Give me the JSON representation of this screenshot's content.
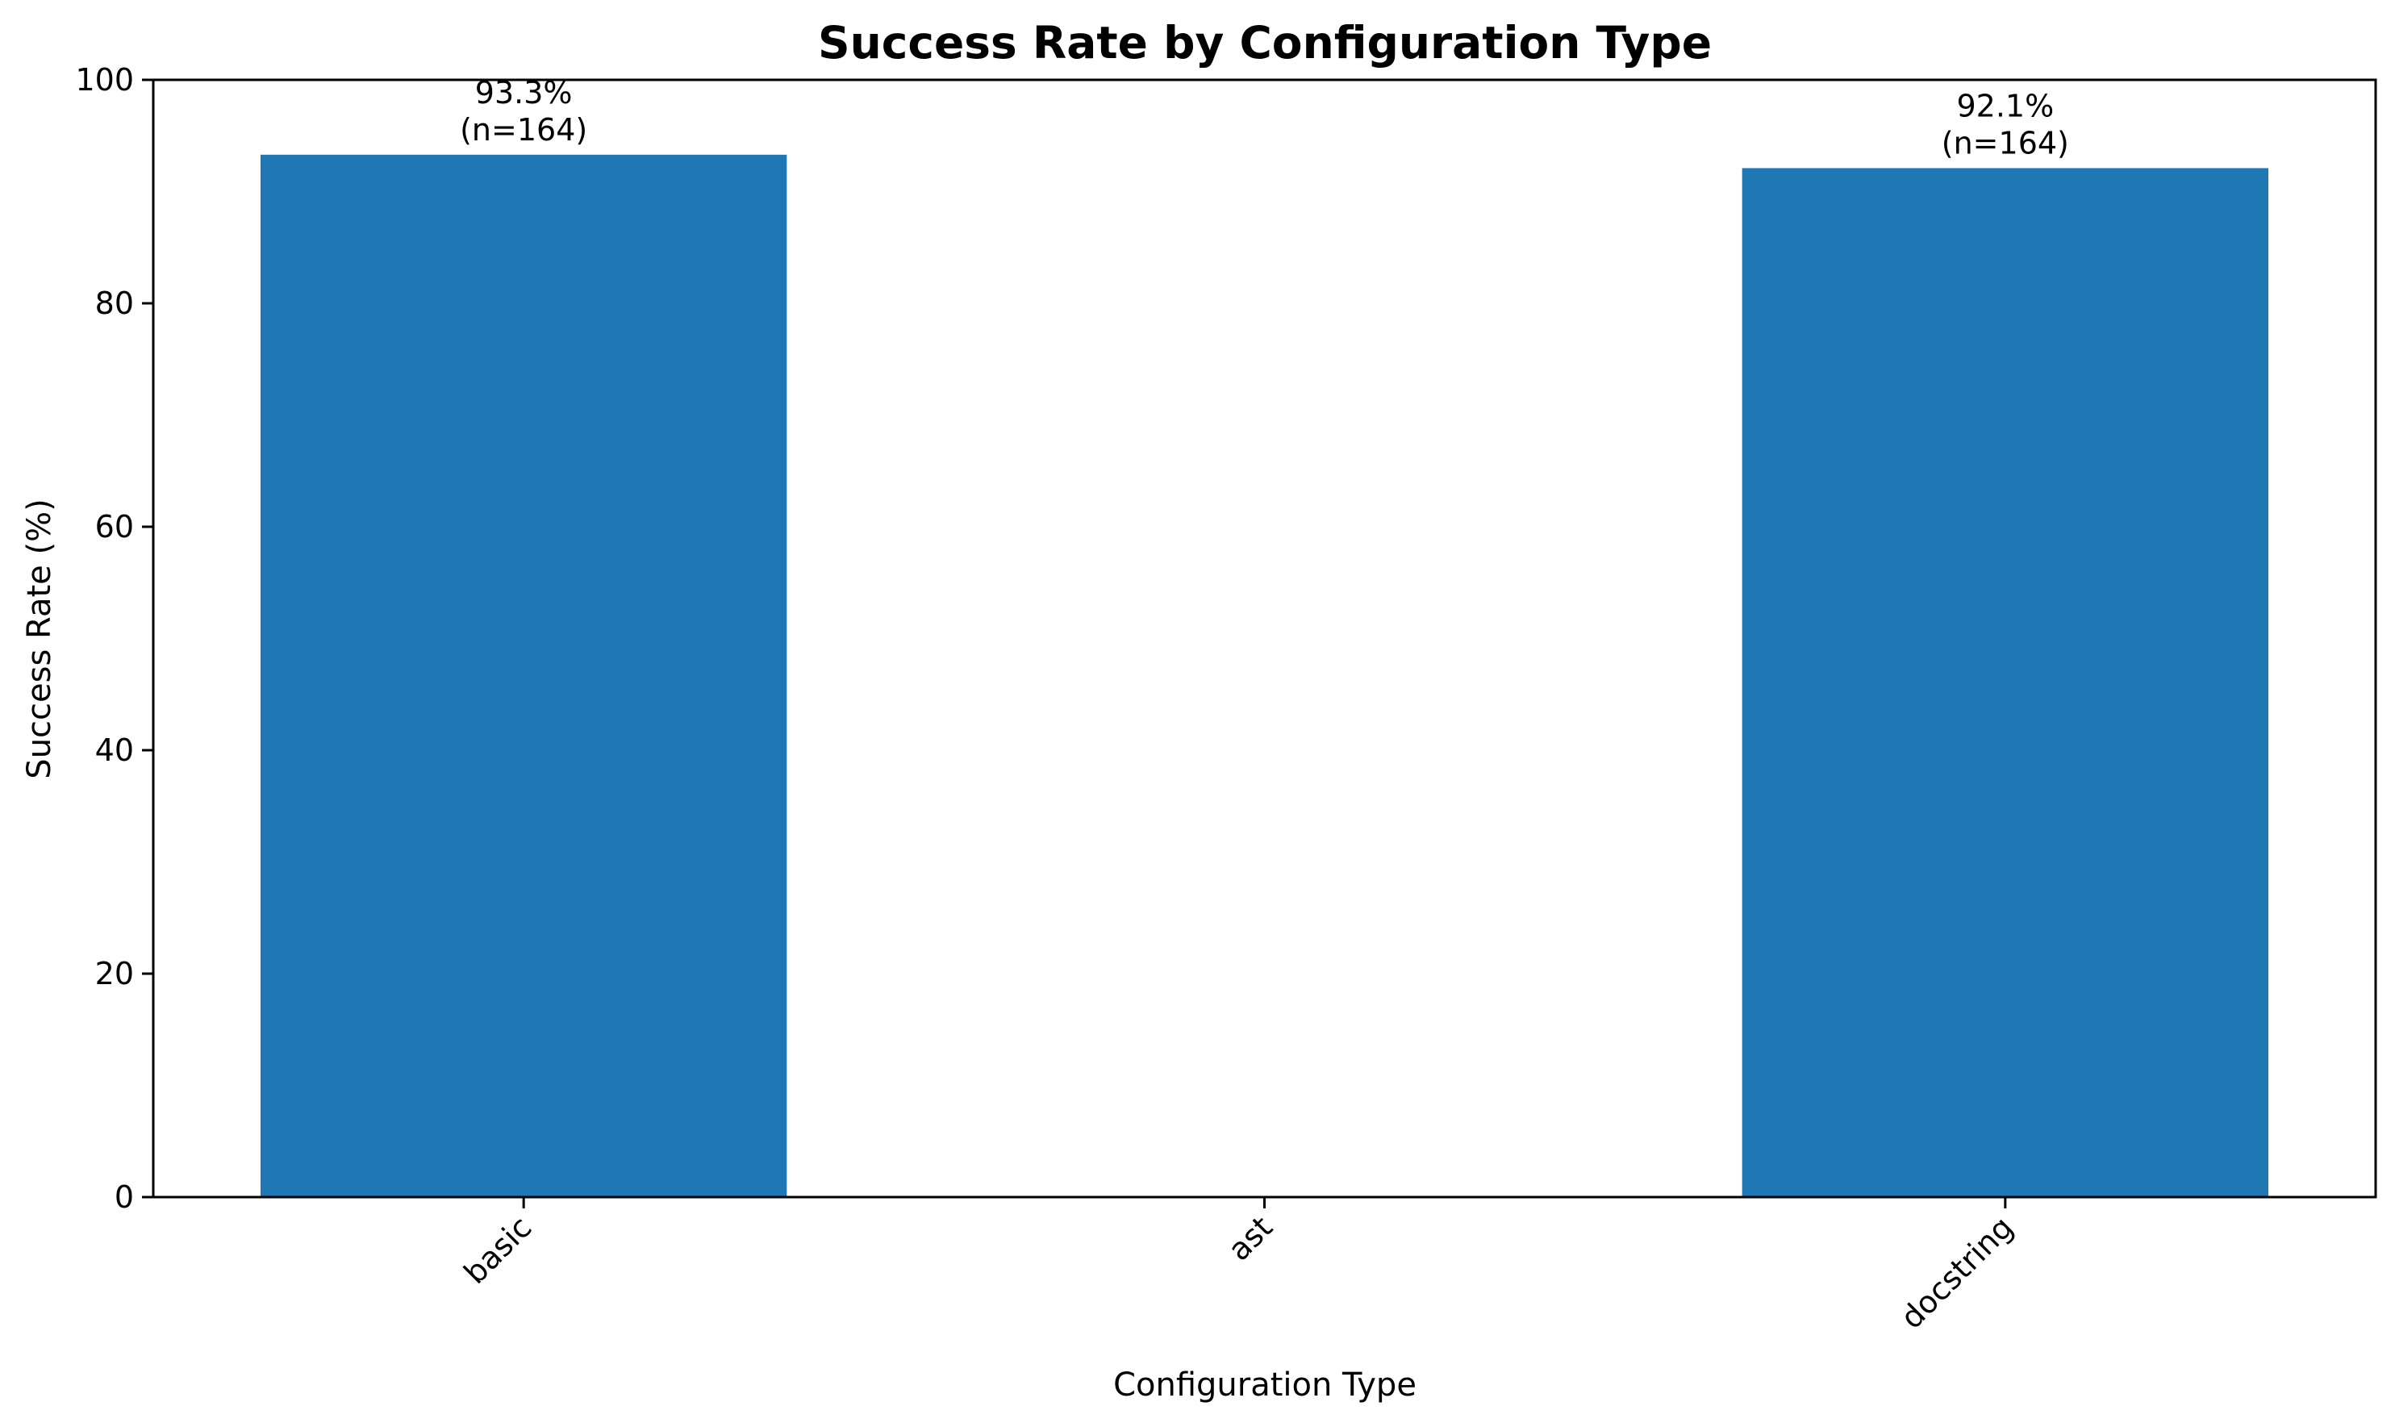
{
  "chart_data": {
    "type": "bar",
    "title": "Success Rate by Configuration Type",
    "xlabel": "Configuration Type",
    "ylabel": "Success Rate (%)",
    "categories": [
      "basic",
      "ast",
      "docstring"
    ],
    "values": [
      93.3,
      0,
      92.1
    ],
    "data_labels": [
      {
        "value": "93.3%",
        "count": "(n=164)"
      },
      null,
      {
        "value": "92.1%",
        "count": "(n=164)"
      }
    ],
    "ylim": [
      0,
      100
    ],
    "yticks": [
      0,
      20,
      40,
      60,
      80,
      100
    ],
    "xtick_rotation": 45,
    "grid": false,
    "legend": "none",
    "colors": {
      "bar": "#1f77b4",
      "axis": "#000000",
      "background": "#ffffff"
    }
  }
}
